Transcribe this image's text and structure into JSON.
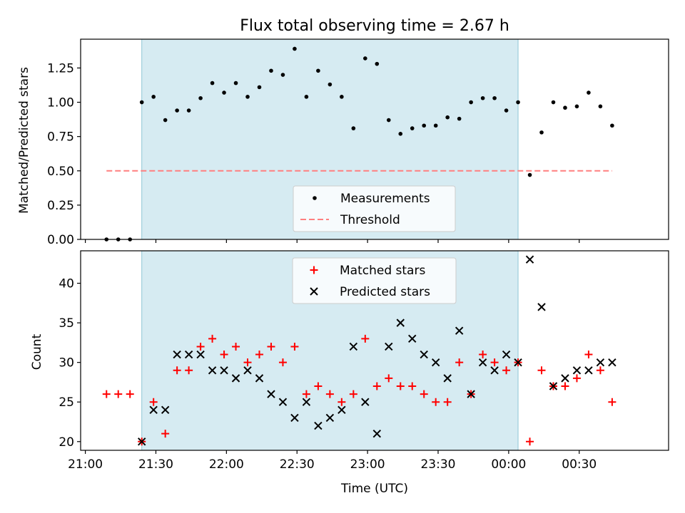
{
  "title": "Flux total observing time = 2.67 h",
  "shade_color": "#add8e6",
  "chart_data": [
    {
      "type": "scatter",
      "ylabel": "Matched/Predicted stars",
      "xlabel": "",
      "ylim": [
        0,
        1.46
      ],
      "yticks": [
        0.0,
        0.25,
        0.5,
        0.75,
        1.0,
        1.25
      ],
      "yticklabels": [
        "0.00",
        "0.25",
        "0.50",
        "0.75",
        "1.00",
        "1.25"
      ],
      "legend_position": "bottom-center",
      "shaded_interval": [
        "21:24",
        "00:04"
      ],
      "threshold": {
        "name": "Threshold",
        "y": 0.5,
        "x_start": "21:09",
        "x_end": "00:44",
        "color": "#ff7f7f"
      },
      "series": [
        {
          "name": "Measurements",
          "marker": "dot",
          "color": "#000000",
          "x": [
            "21:09",
            "21:14",
            "21:19",
            "21:24",
            "21:29",
            "21:34",
            "21:39",
            "21:44",
            "21:49",
            "21:54",
            "21:59",
            "22:04",
            "22:09",
            "22:14",
            "22:19",
            "22:24",
            "22:29",
            "22:34",
            "22:39",
            "22:44",
            "22:49",
            "22:54",
            "22:59",
            "23:04",
            "23:09",
            "23:14",
            "23:19",
            "23:24",
            "23:29",
            "23:34",
            "23:39",
            "23:44",
            "23:49",
            "23:54",
            "23:59",
            "00:04",
            "00:09",
            "00:14",
            "00:19",
            "00:24",
            "00:29",
            "00:34",
            "00:39",
            "00:44"
          ],
          "y": [
            0.0,
            0.0,
            0.0,
            1.0,
            1.04,
            0.87,
            0.94,
            0.94,
            1.03,
            1.14,
            1.07,
            1.14,
            1.04,
            1.11,
            1.23,
            1.2,
            1.39,
            1.04,
            1.23,
            1.13,
            1.04,
            0.81,
            1.32,
            1.28,
            0.87,
            0.77,
            0.81,
            0.83,
            0.83,
            0.89,
            0.88,
            1.0,
            1.03,
            1.03,
            0.94,
            1.0,
            0.47,
            0.78,
            1.0,
            0.96,
            0.97,
            1.07,
            0.97,
            0.83
          ]
        }
      ]
    },
    {
      "type": "scatter",
      "ylabel": "Count",
      "xlabel": "Time (UTC)",
      "ylim": [
        18.9,
        44.1
      ],
      "yticks": [
        20,
        25,
        30,
        35,
        40
      ],
      "yticklabels": [
        "20",
        "25",
        "30",
        "35",
        "40"
      ],
      "xlim": [
        "20:58",
        "01:08"
      ],
      "xticks": [
        "21:00",
        "21:30",
        "22:00",
        "22:30",
        "23:00",
        "23:30",
        "00:00",
        "00:30"
      ],
      "xticklabels": [
        "21:00",
        "21:30",
        "22:00",
        "22:30",
        "23:00",
        "23:30",
        "00:00",
        "00:30"
      ],
      "legend_position": "top-center",
      "shaded_interval": [
        "21:24",
        "00:04"
      ],
      "series": [
        {
          "name": "Matched stars",
          "marker": "plus",
          "color": "#ff0000",
          "x": [
            "21:09",
            "21:14",
            "21:19",
            "21:24",
            "21:29",
            "21:34",
            "21:39",
            "21:44",
            "21:49",
            "21:54",
            "21:59",
            "22:04",
            "22:09",
            "22:14",
            "22:19",
            "22:24",
            "22:29",
            "22:34",
            "22:39",
            "22:44",
            "22:49",
            "22:54",
            "22:59",
            "23:04",
            "23:09",
            "23:14",
            "23:19",
            "23:24",
            "23:29",
            "23:34",
            "23:39",
            "23:44",
            "23:49",
            "23:54",
            "23:59",
            "00:04",
            "00:09",
            "00:14",
            "00:19",
            "00:24",
            "00:29",
            "00:34",
            "00:39",
            "00:44"
          ],
          "y": [
            26,
            26,
            26,
            20,
            25,
            21,
            29,
            29,
            32,
            33,
            31,
            32,
            30,
            31,
            32,
            30,
            32,
            26,
            27,
            26,
            25,
            26,
            33,
            27,
            28,
            27,
            27,
            26,
            25,
            25,
            30,
            26,
            31,
            30,
            29,
            30,
            20,
            29,
            27,
            27,
            28,
            31,
            29,
            25
          ]
        },
        {
          "name": "Predicted stars",
          "marker": "x",
          "color": "#000000",
          "x": [
            "21:24",
            "21:29",
            "21:34",
            "21:39",
            "21:44",
            "21:49",
            "21:54",
            "21:59",
            "22:04",
            "22:09",
            "22:14",
            "22:19",
            "22:24",
            "22:29",
            "22:34",
            "22:39",
            "22:44",
            "22:49",
            "22:54",
            "22:59",
            "23:04",
            "23:09",
            "23:14",
            "23:19",
            "23:24",
            "23:29",
            "23:34",
            "23:39",
            "23:44",
            "23:49",
            "23:54",
            "23:59",
            "00:04",
            "00:09",
            "00:14",
            "00:19",
            "00:24",
            "00:29",
            "00:34",
            "00:39",
            "00:44"
          ],
          "y": [
            20,
            24,
            24,
            31,
            31,
            31,
            29,
            29,
            28,
            29,
            28,
            26,
            25,
            23,
            25,
            22,
            23,
            24,
            32,
            25,
            21,
            32,
            35,
            33,
            31,
            30,
            28,
            34,
            26,
            30,
            29,
            31,
            30,
            43,
            37,
            27,
            28,
            29,
            29,
            30,
            30
          ]
        }
      ]
    }
  ]
}
